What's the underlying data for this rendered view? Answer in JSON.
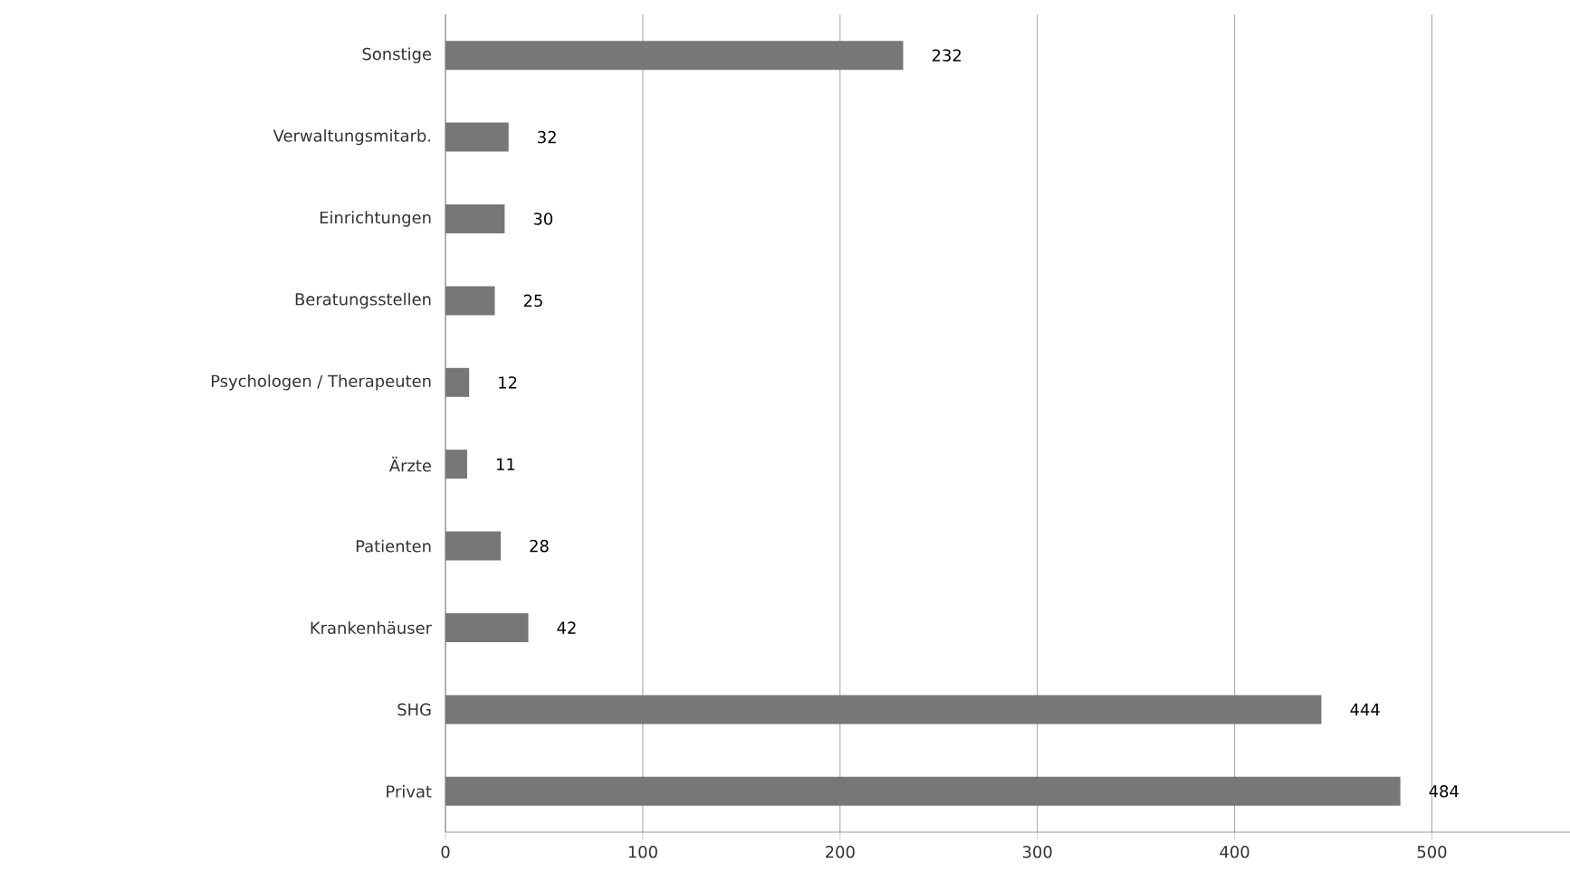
{
  "chart_data": {
    "type": "bar",
    "orientation": "horizontal",
    "categories": [
      "Sonstige",
      "Verwaltungsmitarb.",
      "Einrichtungen",
      "Beratungsstellen",
      "Psychologen / Therapeuten",
      "Ärzte",
      "Patienten",
      "Krankenhäuser",
      "SHG",
      "Privat"
    ],
    "values": [
      232,
      32,
      30,
      25,
      12,
      11,
      28,
      42,
      444,
      484
    ],
    "color": "#777777",
    "xlim": [
      0,
      570
    ],
    "xticks": [
      0,
      100,
      200,
      300,
      400,
      500
    ],
    "grid": "x",
    "data_labels": true
  }
}
